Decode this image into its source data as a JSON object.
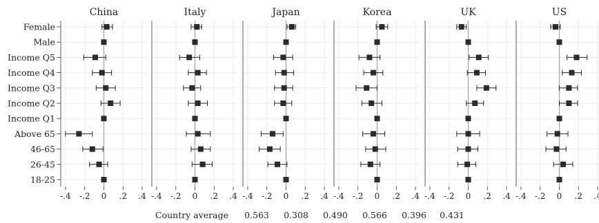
{
  "chart_data": {
    "type": "dot-errorbar",
    "categories": [
      "Female",
      "Male",
      "Income Q5",
      "Income Q4",
      "Income Q3",
      "Income Q2",
      "Income Q1",
      "Above 65",
      "46-65",
      "26-45",
      "18-25"
    ],
    "xlim": [
      -0.45,
      0.45
    ],
    "x_ticks": [
      -0.4,
      -0.2,
      0,
      0.2,
      0.4
    ],
    "x_tick_labels": [
      "-.4",
      "-.2",
      "0",
      ".2",
      ".4"
    ],
    "grid": true,
    "panels": [
      {
        "name": "China",
        "values": [
          0.03,
          0.0,
          -0.09,
          -0.02,
          0.02,
          0.07,
          0.0,
          -0.26,
          -0.12,
          -0.05,
          0.0
        ],
        "lower": [
          -0.02,
          0.0,
          -0.21,
          -0.12,
          -0.08,
          -0.03,
          0.0,
          -0.4,
          -0.22,
          -0.15,
          0.0
        ],
        "upper": [
          0.09,
          0.0,
          0.02,
          0.08,
          0.12,
          0.17,
          0.0,
          -0.12,
          -0.01,
          0.04,
          0.0
        ]
      },
      {
        "name": "Italy",
        "values": [
          0.02,
          0.0,
          -0.06,
          0.03,
          -0.03,
          0.03,
          0.0,
          0.03,
          0.06,
          0.08,
          0.0
        ],
        "lower": [
          -0.04,
          0.0,
          -0.16,
          -0.07,
          -0.12,
          -0.07,
          0.0,
          -0.09,
          -0.04,
          -0.03,
          0.0
        ],
        "upper": [
          0.07,
          0.0,
          0.05,
          0.12,
          0.06,
          0.13,
          0.0,
          0.16,
          0.16,
          0.18,
          0.0
        ]
      },
      {
        "name": "Japan",
        "values": [
          0.06,
          0.0,
          -0.03,
          -0.02,
          -0.02,
          -0.03,
          0.0,
          -0.14,
          -0.17,
          -0.09,
          0.0
        ],
        "lower": [
          0.01,
          0.0,
          -0.13,
          -0.11,
          -0.12,
          -0.12,
          0.0,
          -0.26,
          -0.28,
          -0.19,
          0.0
        ],
        "upper": [
          0.1,
          0.0,
          0.07,
          0.08,
          0.07,
          0.06,
          0.0,
          -0.03,
          -0.06,
          0.01,
          0.0
        ]
      },
      {
        "name": "Korea",
        "values": [
          0.05,
          0.0,
          -0.08,
          -0.04,
          -0.11,
          -0.06,
          0.0,
          -0.04,
          -0.02,
          -0.07,
          0.0
        ],
        "lower": [
          -0.01,
          0.0,
          -0.19,
          -0.14,
          -0.22,
          -0.16,
          0.0,
          -0.15,
          -0.12,
          -0.17,
          0.0
        ],
        "upper": [
          0.11,
          0.0,
          0.03,
          0.06,
          0.0,
          0.05,
          0.0,
          0.08,
          0.09,
          0.03,
          0.0
        ]
      },
      {
        "name": "UK",
        "values": [
          -0.07,
          0.0,
          0.11,
          0.09,
          0.19,
          0.07,
          0.0,
          0.0,
          0.0,
          -0.01,
          0.0
        ],
        "lower": [
          -0.12,
          0.0,
          0.01,
          -0.01,
          0.09,
          -0.02,
          0.0,
          -0.12,
          -0.11,
          -0.11,
          0.0
        ],
        "upper": [
          -0.02,
          0.0,
          0.21,
          0.18,
          0.29,
          0.16,
          0.0,
          0.12,
          0.1,
          0.08,
          0.0
        ]
      },
      {
        "name": "US",
        "values": [
          -0.04,
          0.0,
          0.18,
          0.13,
          0.1,
          0.1,
          0.0,
          -0.02,
          -0.03,
          0.04,
          0.0
        ],
        "lower": [
          -0.09,
          0.0,
          0.08,
          0.03,
          0.0,
          0.0,
          0.0,
          -0.13,
          -0.14,
          -0.06,
          0.0
        ],
        "upper": [
          0.01,
          0.0,
          0.29,
          0.23,
          0.19,
          0.19,
          0.0,
          0.09,
          0.07,
          0.14,
          0.0
        ]
      }
    ],
    "footer_label": "Country average",
    "country_averages": [
      "0.563",
      "0.308",
      "0.490",
      "0.566",
      "0.396",
      "0.431"
    ]
  }
}
